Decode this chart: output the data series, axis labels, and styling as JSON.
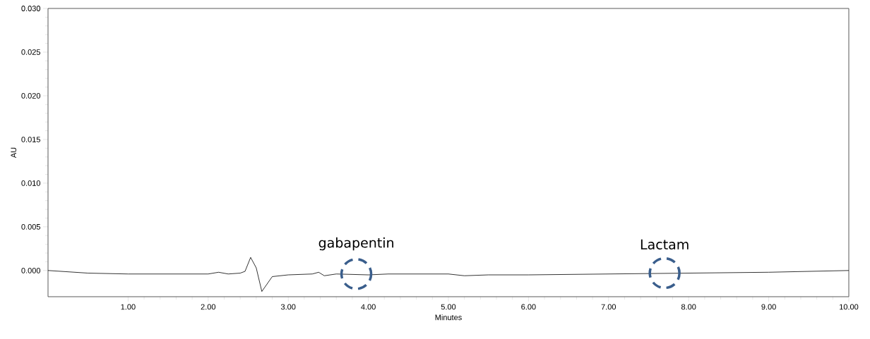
{
  "chart_data": {
    "type": "line",
    "xlabel": "Minutes",
    "ylabel": "AU",
    "x": [
      0,
      0.5,
      1.0,
      1.5,
      2.0,
      2.13,
      2.25,
      2.4,
      2.46,
      2.53,
      2.6,
      2.67,
      2.8,
      3.0,
      3.3,
      3.38,
      3.45,
      3.6,
      4.0,
      4.25,
      5.0,
      5.2,
      5.5,
      6.0,
      7.0,
      8.0,
      9.0,
      10.0
    ],
    "series": [
      {
        "color": "#000000",
        "values": [
          0.0,
          -0.0003,
          -0.0004,
          -0.0004,
          -0.0004,
          -0.0002,
          -0.0004,
          -0.0003,
          -0.0001,
          0.0015,
          0.0003,
          -0.0024,
          -0.0007,
          -0.0005,
          -0.0004,
          -0.0002,
          -0.0006,
          -0.0004,
          -0.0005,
          -0.0004,
          -0.0004,
          -0.0006,
          -0.0005,
          -0.0005,
          -0.0004,
          -0.0003,
          -0.0002,
          0.0
        ]
      }
    ],
    "xlim": [
      0,
      10
    ],
    "ylim": [
      -0.003,
      0.03
    ],
    "xticks": [
      {
        "value": 1,
        "label": "1.00"
      },
      {
        "value": 2,
        "label": "2.00"
      },
      {
        "value": 3,
        "label": "3.00"
      },
      {
        "value": 4,
        "label": "4.00"
      },
      {
        "value": 5,
        "label": "5.00"
      },
      {
        "value": 6,
        "label": "6.00"
      },
      {
        "value": 7,
        "label": "7.00"
      },
      {
        "value": 8,
        "label": "8.00"
      },
      {
        "value": 9,
        "label": "9.00"
      },
      {
        "value": 10,
        "label": "10.00"
      }
    ],
    "yticks": [
      {
        "value": 0,
        "label": "0.000"
      },
      {
        "value": 0.005,
        "label": "0.005"
      },
      {
        "value": 0.01,
        "label": "0.010"
      },
      {
        "value": 0.015,
        "label": "0.015"
      },
      {
        "value": 0.02,
        "label": "0.020"
      },
      {
        "value": 0.025,
        "label": "0.025"
      },
      {
        "value": 0.03,
        "label": "0.030"
      }
    ],
    "annotations": [
      {
        "text": "gabapentin",
        "x": 3.85,
        "y": -0.0004
      },
      {
        "text": "Lactam",
        "x": 7.7,
        "y": -0.0003
      }
    ]
  }
}
